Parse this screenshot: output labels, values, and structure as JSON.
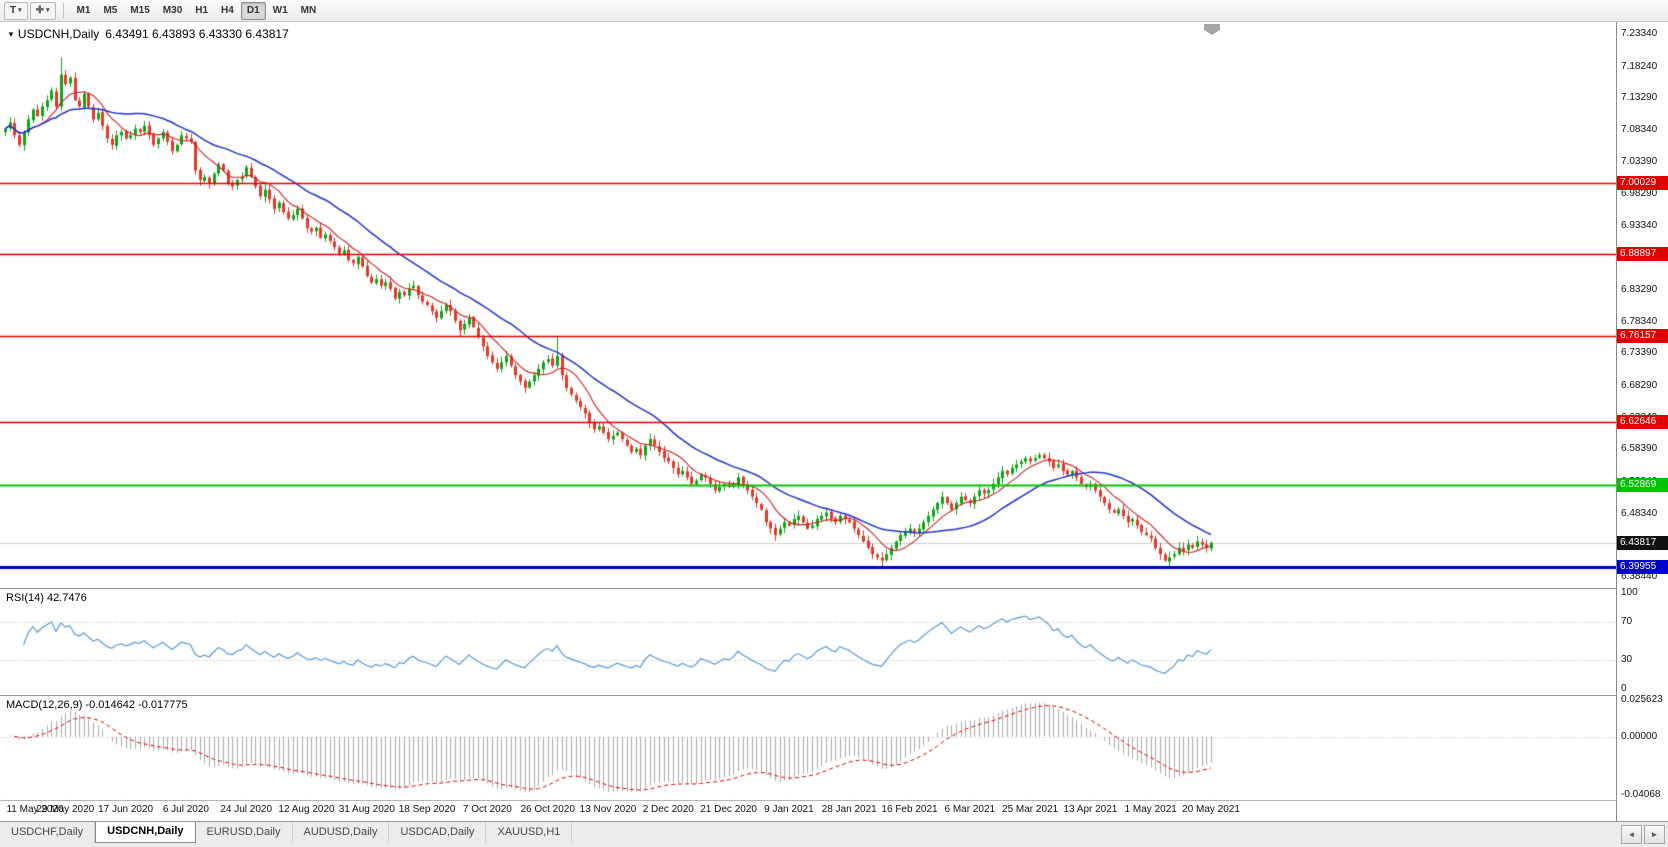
{
  "icons": {
    "caret": "▾",
    "dropdown_marker": "▼",
    "tool_cross": "✚",
    "scroll_left": "◄",
    "scroll_right": "►"
  },
  "toolbar": {
    "templates_label": "T",
    "timeframes": [
      "M1",
      "M5",
      "M15",
      "M30",
      "H1",
      "H4",
      "D1",
      "W1",
      "MN"
    ],
    "active_timeframe": "D1"
  },
  "main_chart": {
    "title_symbol": "USDCNH,Daily",
    "ohlc": "6.43491 6.43893 6.43330 6.43817"
  },
  "panes": {
    "rsi_label": "RSI(14) 42.7476",
    "macd_label": "MACD(12,26,9) -0.014642 -0.017775"
  },
  "tabs": [
    {
      "label": "USDCHF,Daily",
      "active": false
    },
    {
      "label": "USDCNH,Daily",
      "active": true
    },
    {
      "label": "EURUSD,Daily",
      "active": false
    },
    {
      "label": "AUDUSD,Daily",
      "active": false
    },
    {
      "label": "USDCAD,Daily",
      "active": false
    },
    {
      "label": "XAUUSD,H1",
      "active": false
    }
  ],
  "chart_data": {
    "type": "candlestick",
    "symbol": "USDCNH",
    "period": "Daily",
    "candle_up_color": "#10a318",
    "candle_down_color": "#e23a2a",
    "ma_fast": {
      "period": 8,
      "color": "#cc2222"
    },
    "ma_slow": {
      "period": 25,
      "color": "#2233cc"
    },
    "current_price": {
      "label": "6.43817",
      "value": 6.43817,
      "tag_bg": "#111111"
    },
    "price_axis": {
      "top": 7.2334,
      "bottom": 6.3844,
      "labels": [
        "7.23340",
        "7.18240",
        "7.13290",
        "7.08340",
        "7.03390",
        "6.98290",
        "6.93340",
        "6.88340",
        "6.83290",
        "6.78340",
        "6.73390",
        "6.68290",
        "6.63340",
        "6.58390",
        "6.53340",
        "6.48340",
        "6.43390",
        "6.38440"
      ]
    },
    "hlines": [
      {
        "label": "7.00029",
        "price": 7.00029,
        "color": "#e00000",
        "width": 1.6
      },
      {
        "label": "6.88897",
        "price": 6.88897,
        "color": "#e00000",
        "width": 1.6
      },
      {
        "label": "6.76157",
        "price": 6.76157,
        "color": "#e00000",
        "width": 1.6
      },
      {
        "label": "6.62646",
        "price": 6.62646,
        "color": "#e00000",
        "width": 1.6
      },
      {
        "label": "6.52869",
        "price": 6.52869,
        "color": "#00c300",
        "width": 2.2
      },
      {
        "label": "6.39955",
        "price": 6.39955,
        "color": "#0000cc",
        "width": 3
      }
    ],
    "x_labels": [
      "11 May 2020",
      "29 May 2020",
      "17 Jun 2020",
      "6 Jul 2020",
      "24 Jul 2020",
      "12 Aug 2020",
      "31 Aug 2020",
      "18 Sep 2020",
      "7 Oct 2020",
      "26 Oct 2020",
      "13 Nov 2020",
      "2 Dec 2020",
      "21 Dec 2020",
      "9 Jan 2021",
      "28 Jan 2021",
      "16 Feb 2021",
      "6 Mar 2021",
      "25 Mar 2021",
      "13 Apr 2021",
      "1 May 2021",
      "20 May 2021"
    ],
    "bars_per_label": 13,
    "closes": [
      7.085,
      7.095,
      7.075,
      7.06,
      7.08,
      7.1,
      7.115,
      7.105,
      7.12,
      7.13,
      7.145,
      7.12,
      7.17,
      7.155,
      7.165,
      7.13,
      7.12,
      7.14,
      7.12,
      7.1,
      7.11,
      7.09,
      7.07,
      7.06,
      7.075,
      7.08,
      7.07,
      7.075,
      7.085,
      7.08,
      7.09,
      7.075,
      7.06,
      7.07,
      7.08,
      7.065,
      7.05,
      7.06,
      7.075,
      7.07,
      7.065,
      7.02,
      7.005,
      7.01,
      7.0,
      7.015,
      7.03,
      7.02,
      7.0,
      6.995,
      7.005,
      7.01,
      7.025,
      7.01,
      6.995,
      6.98,
      6.99,
      6.975,
      6.96,
      6.97,
      6.955,
      6.945,
      6.95,
      6.96,
      6.945,
      6.93,
      6.925,
      6.93,
      6.915,
      6.92,
      6.91,
      6.9,
      6.89,
      6.895,
      6.88,
      6.875,
      6.885,
      6.87,
      6.855,
      6.845,
      6.85,
      6.84,
      6.845,
      6.835,
      6.82,
      6.83,
      6.825,
      6.835,
      6.84,
      6.825,
      6.815,
      6.81,
      6.8,
      6.79,
      6.8,
      6.81,
      6.8,
      6.785,
      6.77,
      6.78,
      6.79,
      6.775,
      6.76,
      6.745,
      6.73,
      6.72,
      6.71,
      6.72,
      6.73,
      6.715,
      6.7,
      6.69,
      6.68,
      6.69,
      6.7,
      6.71,
      6.72,
      6.725,
      6.715,
      6.73,
      6.7,
      6.68,
      6.67,
      6.66,
      6.65,
      6.64,
      6.625,
      6.615,
      6.62,
      6.61,
      6.6,
      6.605,
      6.61,
      6.6,
      6.59,
      6.58,
      6.585,
      6.575,
      6.59,
      6.6,
      6.59,
      6.58,
      6.57,
      6.565,
      6.555,
      6.545,
      6.55,
      6.54,
      6.53,
      6.535,
      6.545,
      6.54,
      6.53,
      6.52,
      6.525,
      6.53,
      6.525,
      6.53,
      6.54,
      6.53,
      6.52,
      6.51,
      6.5,
      6.49,
      6.47,
      6.46,
      6.45,
      6.46,
      6.47,
      6.465,
      6.475,
      6.48,
      6.47,
      6.46,
      6.465,
      6.475,
      6.48,
      6.485,
      6.475,
      6.47,
      6.48,
      6.475,
      6.47,
      6.46,
      6.45,
      6.44,
      6.43,
      6.42,
      6.415,
      6.41,
      6.42,
      6.43,
      6.44,
      6.45,
      6.455,
      6.46,
      6.455,
      6.46,
      6.47,
      6.48,
      6.49,
      6.5,
      6.51,
      6.5,
      6.49,
      6.5,
      6.51,
      6.505,
      6.5,
      6.51,
      6.52,
      6.515,
      6.52,
      6.53,
      6.54,
      6.55,
      6.545,
      6.555,
      6.56,
      6.565,
      6.57,
      6.565,
      6.57,
      6.575,
      6.57,
      6.565,
      6.555,
      6.56,
      6.55,
      6.545,
      6.55,
      6.54,
      6.53,
      6.525,
      6.53,
      6.52,
      6.51,
      6.5,
      6.49,
      6.485,
      6.49,
      6.48,
      6.47,
      6.475,
      6.465,
      6.455,
      6.45,
      6.445,
      6.43,
      6.42,
      6.41,
      6.415,
      6.42,
      6.43,
      6.425,
      6.435,
      6.43,
      6.44,
      6.435,
      6.43,
      6.438
    ],
    "spikes": [
      {
        "i": 12,
        "high": 7.1966
      },
      {
        "i": 119,
        "high": 6.762
      },
      {
        "i": 189,
        "low": 6.398
      }
    ],
    "rsi": {
      "period": 14,
      "color": "#5b9bd5",
      "last_value": 42.7476,
      "axis_values": [
        100,
        70,
        30,
        0
      ],
      "axis_labels": [
        "100",
        "70",
        "30",
        "0"
      ],
      "guides": [
        70,
        30
      ]
    },
    "macd": {
      "fast": 12,
      "slow": 26,
      "signal": 9,
      "last_value": -0.014642,
      "last_signal": -0.017775,
      "scale_max": 0.025623,
      "scale_min": -0.04068,
      "axis_labels": [
        "0.025623",
        "0.00000",
        "-0.04068"
      ],
      "hist_color": "#a8a8a8",
      "signal_color": "#dd0000"
    }
  }
}
